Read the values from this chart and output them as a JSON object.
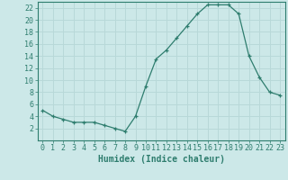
{
  "x": [
    0,
    1,
    2,
    3,
    4,
    5,
    6,
    7,
    8,
    9,
    10,
    11,
    12,
    13,
    14,
    15,
    16,
    17,
    18,
    19,
    20,
    21,
    22,
    23
  ],
  "y": [
    5,
    4,
    3.5,
    3,
    3,
    3,
    2.5,
    2,
    1.5,
    4,
    9,
    13.5,
    15,
    17,
    19,
    21,
    22.5,
    22.5,
    22.5,
    21,
    14,
    10.5,
    8,
    7.5
  ],
  "line_color": "#2e7d6e",
  "marker": "+",
  "bg_color": "#cce8e8",
  "grid_color": "#b8d8d8",
  "xlabel": "Humidex (Indice chaleur)",
  "ylim": [
    0,
    23
  ],
  "xlim": [
    -0.5,
    23.5
  ],
  "yticks": [
    2,
    4,
    6,
    8,
    10,
    12,
    14,
    16,
    18,
    20,
    22
  ],
  "xticks": [
    0,
    1,
    2,
    3,
    4,
    5,
    6,
    7,
    8,
    9,
    10,
    11,
    12,
    13,
    14,
    15,
    16,
    17,
    18,
    19,
    20,
    21,
    22,
    23
  ],
  "tick_color": "#2e7d6e",
  "label_fontsize": 6,
  "xlabel_fontsize": 7
}
